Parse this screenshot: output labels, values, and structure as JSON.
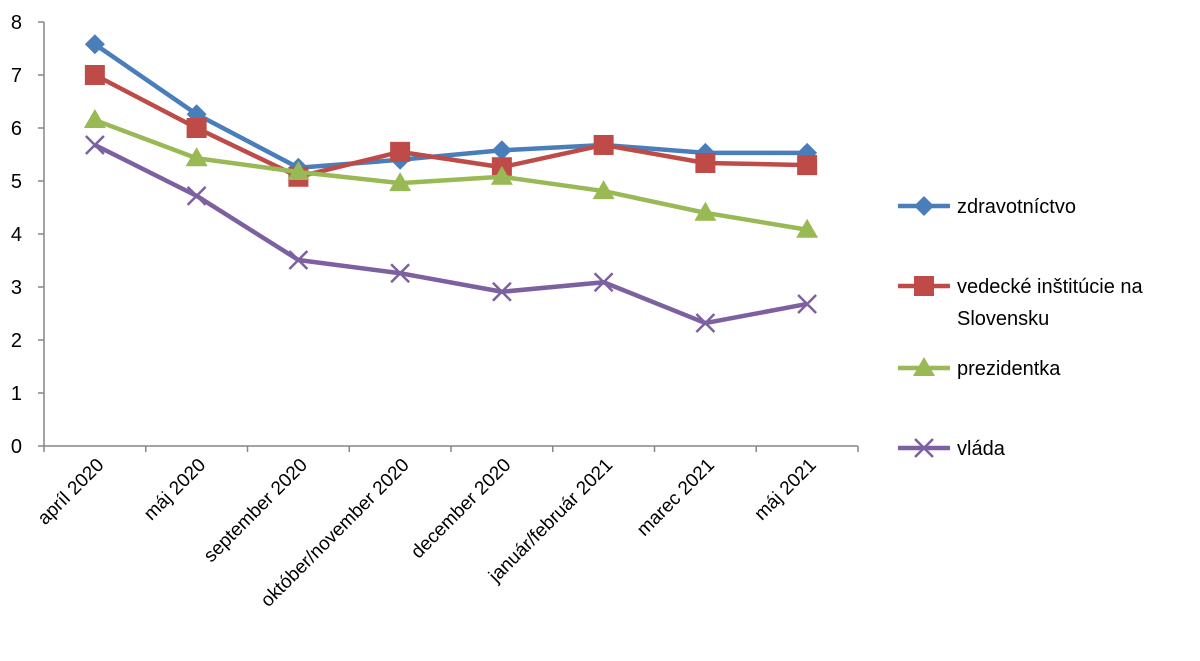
{
  "chart_data": {
    "type": "line",
    "title": "",
    "xlabel": "",
    "ylabel": "",
    "ylim": [
      0,
      8
    ],
    "yticks": [
      "0",
      "1",
      "2",
      "3",
      "4",
      "5",
      "6",
      "7",
      "8"
    ],
    "grid": false,
    "legend_position": "right",
    "categories": [
      "apríl 2020",
      "máj 2020",
      "september 2020",
      "október/november 2020",
      "december 2020",
      "január/február 2021",
      "marec 2021",
      "máj 2021"
    ],
    "series": [
      {
        "name": "zdravotníctvo",
        "legend_lines": [
          "zdravotníctvo"
        ],
        "color": "#4a7ebb",
        "marker": "diamond",
        "values": [
          7.58,
          6.26,
          5.25,
          5.4,
          5.58,
          5.68,
          5.53,
          5.53
        ]
      },
      {
        "name": "vedecké inštitúcie na Slovensku",
        "legend_lines": [
          "vedecké inštitúcie na",
          "Slovensku"
        ],
        "color": "#be4b48",
        "marker": "square",
        "values": [
          7.0,
          6.0,
          5.08,
          5.55,
          5.26,
          5.68,
          5.34,
          5.3
        ]
      },
      {
        "name": "prezidentka",
        "legend_lines": [
          "prezidentka"
        ],
        "color": "#98b954",
        "marker": "triangle",
        "values": [
          6.15,
          5.43,
          5.17,
          4.96,
          5.08,
          4.81,
          4.4,
          4.08
        ]
      },
      {
        "name": "vláda",
        "legend_lines": [
          "vláda"
        ],
        "color": "#7d60a0",
        "marker": "x",
        "values": [
          5.68,
          4.72,
          3.51,
          3.26,
          2.91,
          3.09,
          2.32,
          2.68
        ]
      }
    ]
  }
}
